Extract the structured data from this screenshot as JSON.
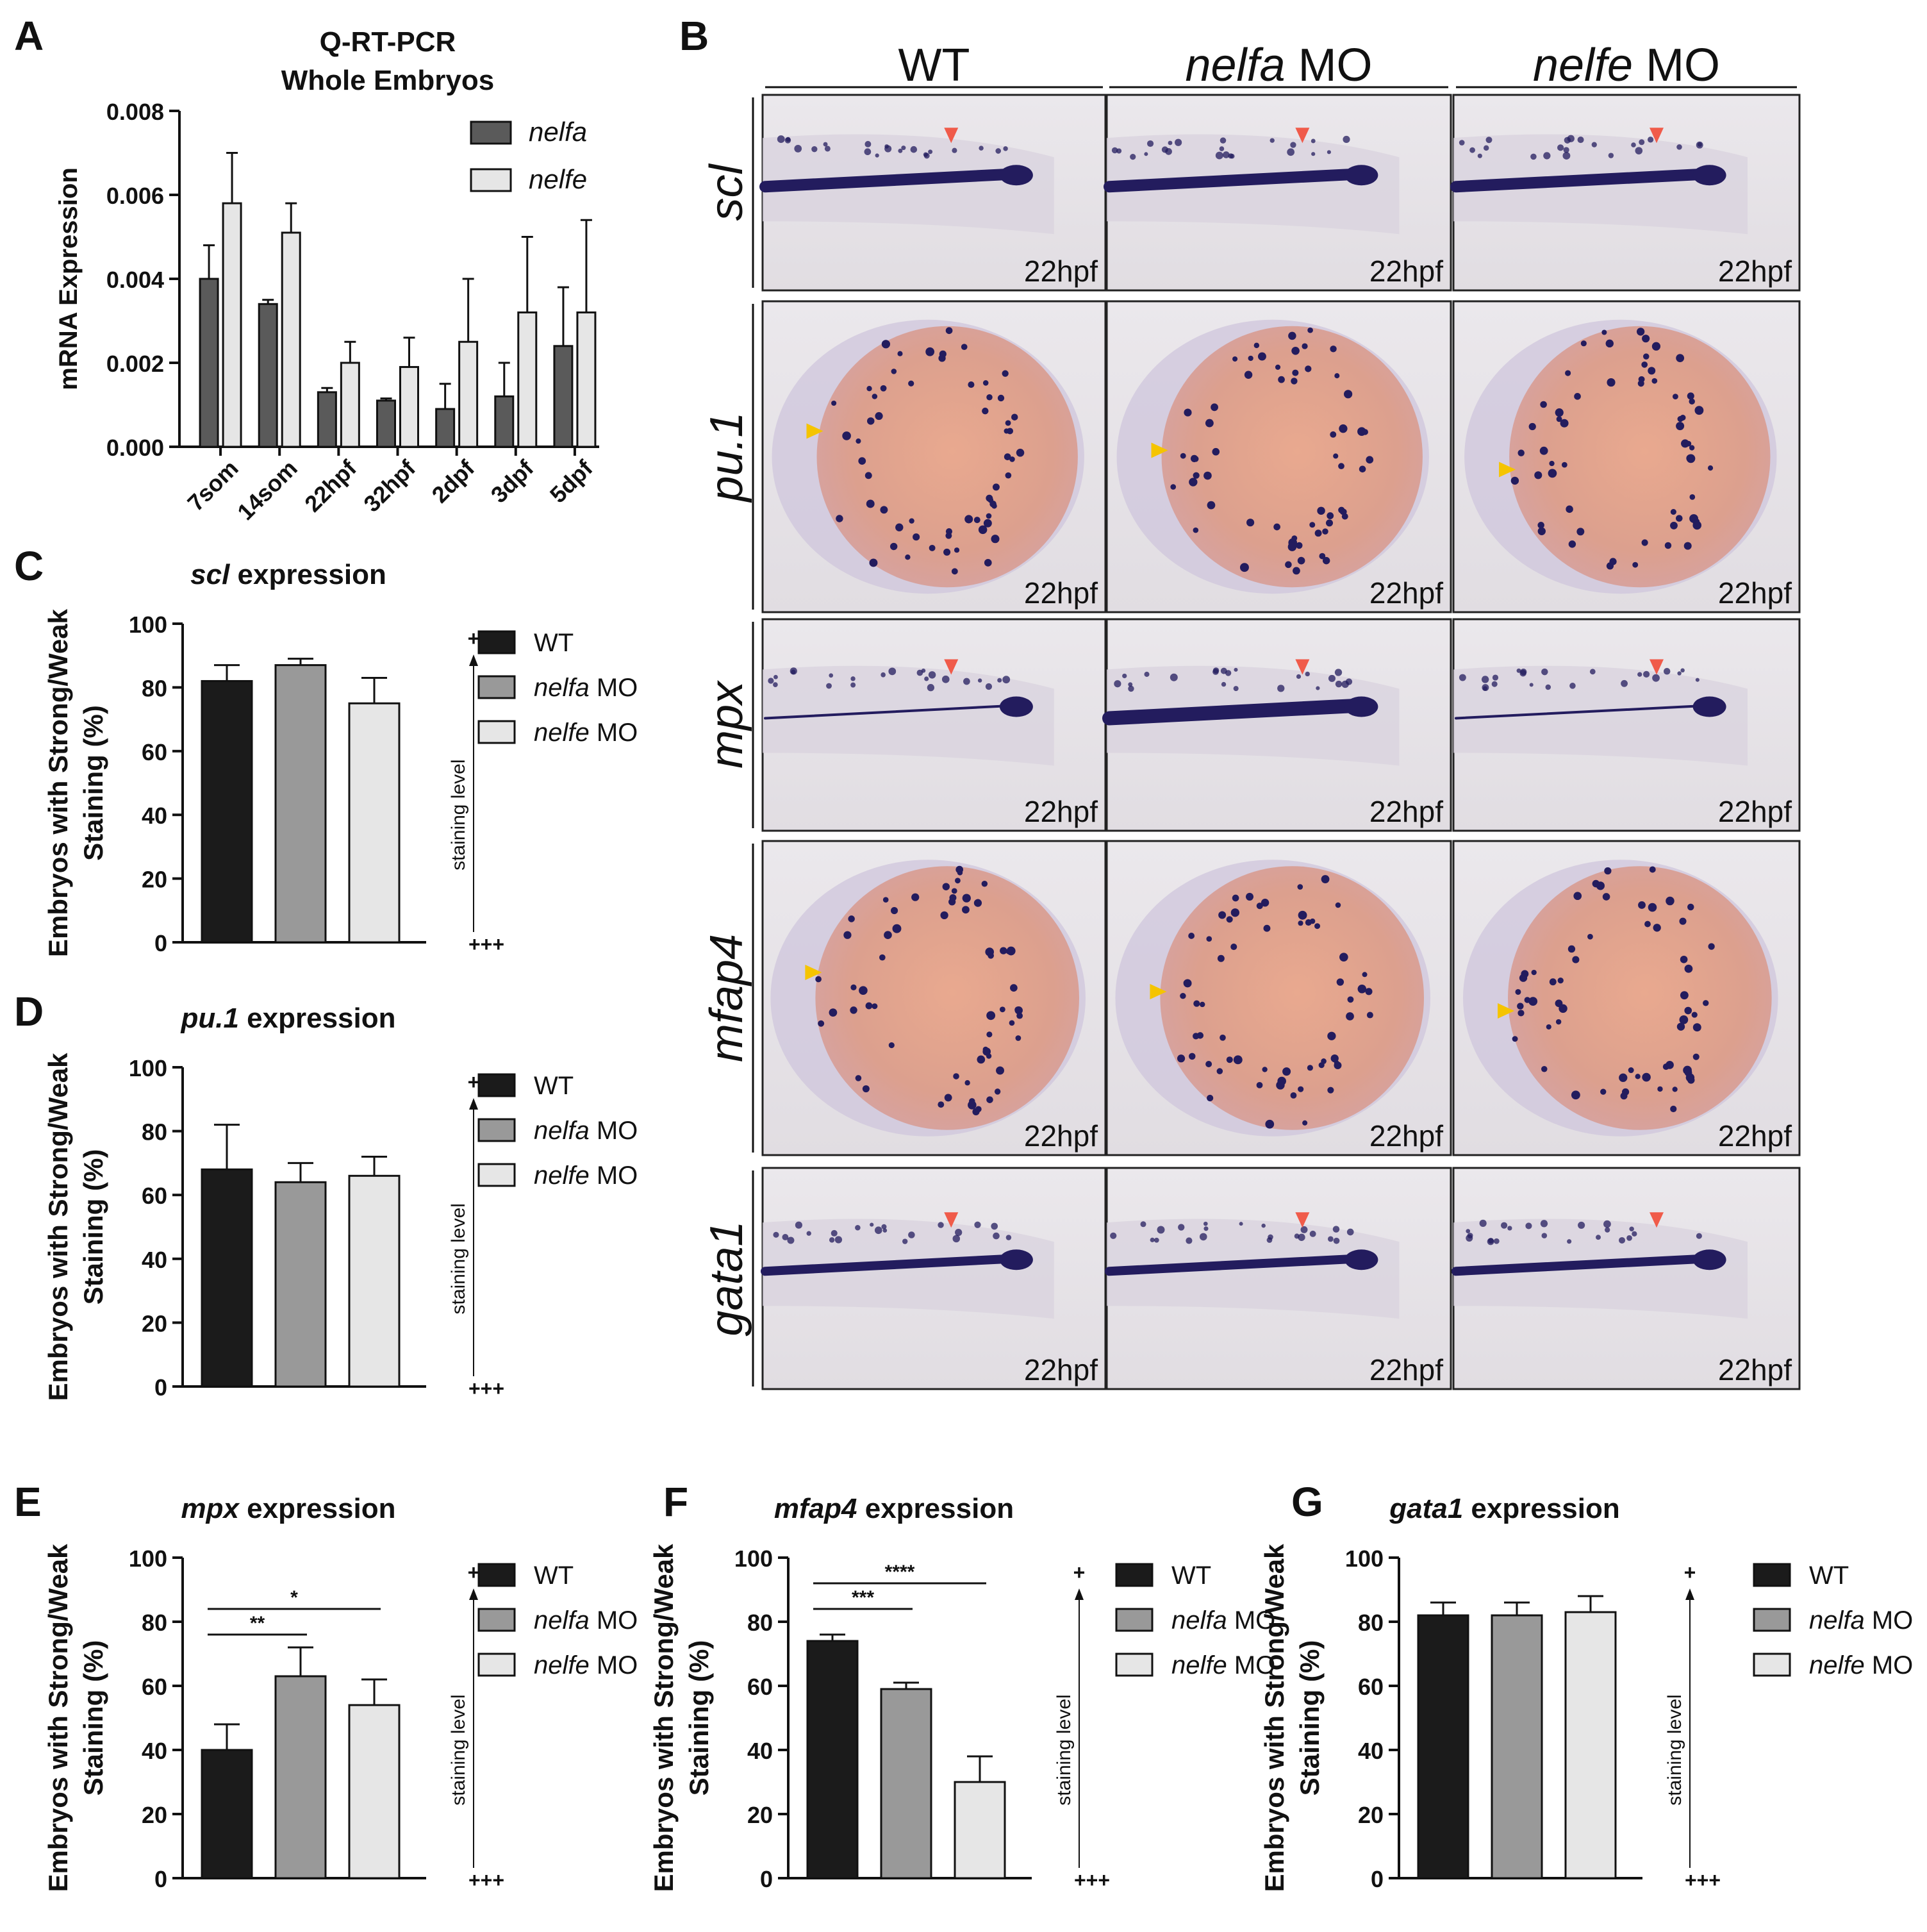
{
  "colors": {
    "wt": "#1b1b1b",
    "nelfa_mo": "#999999",
    "nelfe_mo": "#e6e6e6",
    "nelfa_qpcr": "#5a5a5a",
    "nelfe_qpcr": "#e6e6e6",
    "red_arrow": "#f05b4a",
    "yellow_arrow": "#f5c400",
    "stain": "#231c5e"
  },
  "panel_b": {
    "letter": "B",
    "columns": [
      {
        "italic": "",
        "plain": "WT"
      },
      {
        "italic": "nelfa",
        "plain": " MO"
      },
      {
        "italic": "nelfe",
        "plain": " MO"
      }
    ],
    "rows": [
      {
        "gene": "scl",
        "kind": "tail",
        "arrow": "red-arrow"
      },
      {
        "gene": "pu.1",
        "kind": "yolk",
        "arrow": "yellow-arrow"
      },
      {
        "gene": "mpx",
        "kind": "tail",
        "arrow": "red-arrow"
      },
      {
        "gene": "mfap4",
        "kind": "yolk",
        "arrow": "yellow-arrow"
      },
      {
        "gene": "gata1",
        "kind": "tail",
        "arrow": "red-arrow"
      }
    ],
    "stage_label": "22hpf"
  },
  "chart_data": [
    {
      "id": "A",
      "type": "bar",
      "title": [
        "Q-RT-PCR",
        "Whole Embryos"
      ],
      "ylabel": "mRNA Expression",
      "ylim": [
        0,
        0.008
      ],
      "yticks": [
        "0.000",
        "0.002",
        "0.004",
        "0.006",
        "0.008"
      ],
      "categories": [
        "7som",
        "14som",
        "22hpf",
        "32hpf",
        "2dpf",
        "3dpf",
        "5dpf"
      ],
      "series": [
        {
          "name": "nelfa",
          "color_key": "nelfa_qpcr",
          "values": [
            0.004,
            0.0034,
            0.0013,
            0.0011,
            0.0009,
            0.0012,
            0.0024
          ],
          "errors": [
            0.0008,
            0.0001,
            0.0001,
            5e-05,
            0.0006,
            0.0008,
            0.0014
          ]
        },
        {
          "name": "nelfe",
          "color_key": "nelfe_qpcr",
          "values": [
            0.0058,
            0.0051,
            0.002,
            0.0019,
            0.0025,
            0.0032,
            0.0032
          ],
          "errors": [
            0.0012,
            0.0007,
            0.0005,
            0.0007,
            0.0015,
            0.0018,
            0.0022
          ]
        }
      ]
    },
    {
      "id": "C",
      "type": "bar",
      "gene": "scl",
      "title_suffix": " expression",
      "ylabel": [
        "Embryos with Strong/Weak",
        "Staining (%)"
      ],
      "ylim": [
        0,
        100
      ],
      "yticks": [
        "0",
        "20",
        "40",
        "60",
        "80",
        "100"
      ],
      "categories": [
        "WT",
        "nelfa MO",
        "nelfe MO"
      ],
      "values": [
        82,
        87,
        75
      ],
      "errors": [
        5,
        2,
        8
      ],
      "side_axis": {
        "top": "+",
        "bottom": "+++",
        "label": "staining level"
      },
      "significance": []
    },
    {
      "id": "D",
      "type": "bar",
      "gene": "pu.1",
      "title_suffix": " expression",
      "ylabel": [
        "Embryos with Strong/Weak",
        "Staining (%)"
      ],
      "ylim": [
        0,
        100
      ],
      "yticks": [
        "0",
        "20",
        "40",
        "60",
        "80",
        "100"
      ],
      "categories": [
        "WT",
        "nelfa MO",
        "nelfe MO"
      ],
      "values": [
        68,
        64,
        66
      ],
      "errors": [
        14,
        6,
        6
      ],
      "side_axis": {
        "top": "+",
        "bottom": "+++",
        "label": "staining level"
      },
      "significance": []
    },
    {
      "id": "E",
      "type": "bar",
      "gene": "mpx",
      "title_suffix": " expression",
      "ylabel": [
        "Embryos with Strong/Weak",
        "Staining (%)"
      ],
      "ylim": [
        0,
        100
      ],
      "yticks": [
        "0",
        "20",
        "40",
        "60",
        "80",
        "100"
      ],
      "categories": [
        "WT",
        "nelfa MO",
        "nelfe MO"
      ],
      "values": [
        40,
        63,
        54
      ],
      "errors": [
        8,
        9,
        8
      ],
      "side_axis": {
        "top": "+",
        "bottom": "+++",
        "label": "staining level"
      },
      "significance": [
        {
          "from": 0,
          "to": 1,
          "y": 76,
          "label": "**"
        },
        {
          "from": 0,
          "to": 2,
          "y": 84,
          "label": "*"
        }
      ]
    },
    {
      "id": "F",
      "type": "bar",
      "gene": "mfap4",
      "title_suffix": " expression",
      "ylabel": [
        "Embryos with Strong/Weak",
        "Staining (%)"
      ],
      "ylim": [
        0,
        100
      ],
      "yticks": [
        "0",
        "20",
        "40",
        "60",
        "80",
        "100"
      ],
      "categories": [
        "WT",
        "nelfa MO",
        "nelfe MO"
      ],
      "values": [
        74,
        59,
        30
      ],
      "errors": [
        2,
        2,
        8
      ],
      "side_axis": {
        "top": "+",
        "bottom": "+++",
        "label": "staining level"
      },
      "significance": [
        {
          "from": 0,
          "to": 1,
          "y": 84,
          "label": "***"
        },
        {
          "from": 0,
          "to": 2,
          "y": 92,
          "label": "****"
        }
      ]
    },
    {
      "id": "G",
      "type": "bar",
      "gene": "gata1",
      "title_suffix": " expression",
      "ylabel": [
        "Embryos with Strong/Weak",
        "Staining (%)"
      ],
      "ylim": [
        0,
        100
      ],
      "yticks": [
        "0",
        "20",
        "40",
        "60",
        "80",
        "100"
      ],
      "categories": [
        "WT",
        "nelfa MO",
        "nelfe MO"
      ],
      "values": [
        82,
        82,
        83
      ],
      "errors": [
        4,
        4,
        5
      ],
      "side_axis": {
        "top": "+",
        "bottom": "+++",
        "label": "staining level"
      },
      "significance": []
    }
  ],
  "legend_groups": [
    {
      "italic": "",
      "plain": "WT",
      "color_key": "wt"
    },
    {
      "italic": "nelfa",
      "plain": " MO",
      "color_key": "nelfa_mo"
    },
    {
      "italic": "nelfe",
      "plain": " MO",
      "color_key": "nelfe_mo"
    }
  ]
}
